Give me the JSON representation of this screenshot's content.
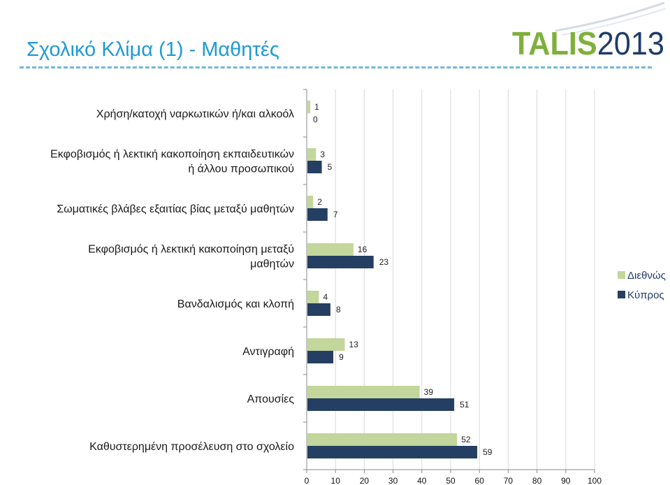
{
  "slide": {
    "title": "Σχολικό Κλίμα (1) - Μαθητές"
  },
  "logo": {
    "text": "TALIS2013",
    "colors": {
      "green": "#7fb03b",
      "blue": "#1f3c6a"
    }
  },
  "colors": {
    "intl": "#c3d69b",
    "cyprus": "#253f63",
    "title": "#1e9ad6"
  },
  "chart_data": {
    "type": "bar",
    "orientation": "horizontal",
    "categories": [
      [
        "Χρήση/κατοχή ναρκωτικών ή/και αλκοόλ"
      ],
      [
        "Εκφοβισμός ή λεκτική κακοποίηση εκπαιδευτικών",
        "ή άλλου προσωπικού"
      ],
      [
        "Σωματικές βλάβες εξαιτίας βίας μεταξύ μαθητών"
      ],
      [
        "Εκφοβισμός ή λεκτική κακοποίηση μεταξύ",
        "μαθητών"
      ],
      [
        "Βανδαλισμός και κλοπή"
      ],
      [
        "Αντιγραφή"
      ],
      [
        "Απουσίες"
      ],
      [
        "Καθυστερημένη προσέλευση στο σχολείο"
      ]
    ],
    "series": [
      {
        "name": "Διεθνώς",
        "values": [
          1,
          3,
          2,
          16,
          4,
          13,
          39,
          52
        ]
      },
      {
        "name": "Κύπρος",
        "values": [
          0,
          5,
          7,
          23,
          8,
          9,
          51,
          59
        ]
      }
    ],
    "xlim": [
      0,
      100
    ],
    "xticks": [
      0,
      10,
      20,
      30,
      40,
      50,
      60,
      70,
      80,
      90,
      100
    ],
    "grid": true,
    "legend_position": "right"
  }
}
